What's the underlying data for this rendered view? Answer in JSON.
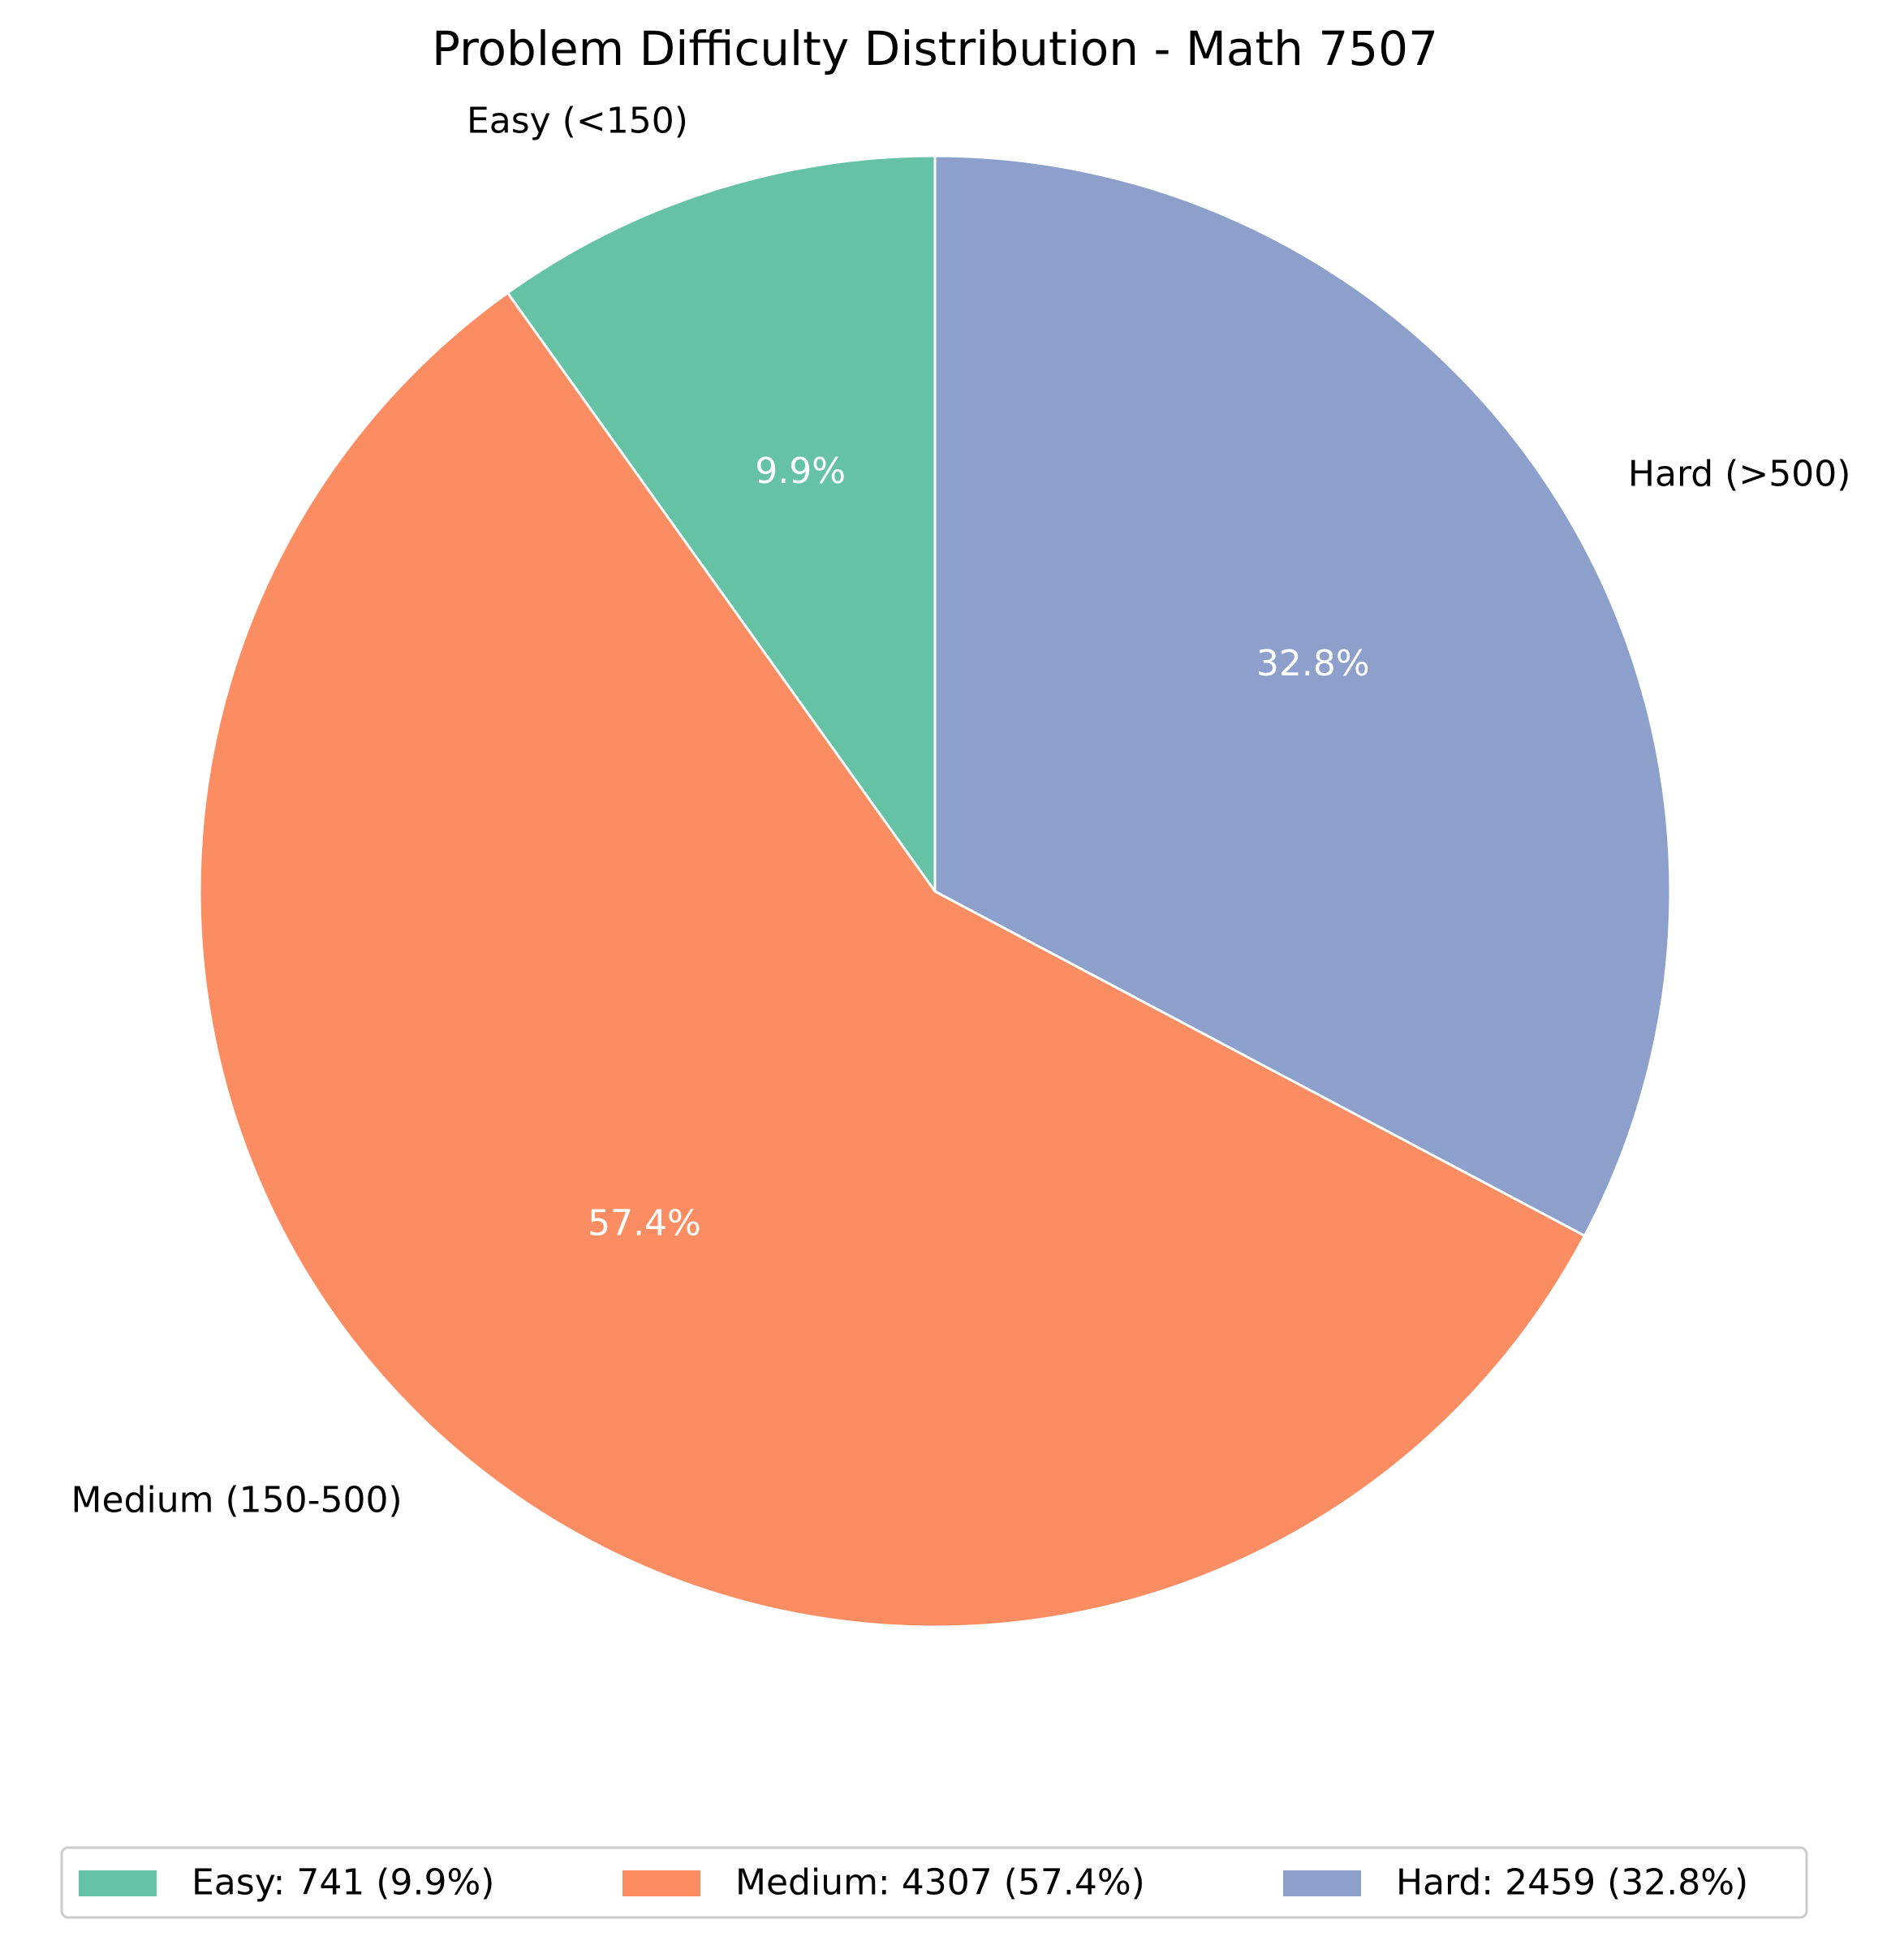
{
  "chart_data": {
    "type": "pie",
    "title": "Problem Difficulty Distribution - Math 7507",
    "start_angle_deg": 90,
    "direction": "counterclockwise",
    "slices": [
      {
        "label": "Easy (<150)",
        "value": 741,
        "percent_label": "9.9%",
        "legend": "Easy: 741 (9.9%)",
        "color": "#66c2a5"
      },
      {
        "label": "Medium (150-500)",
        "value": 4307,
        "percent_label": "57.4%",
        "legend": "Medium: 4307 (57.4%)",
        "color": "#fc8d62"
      },
      {
        "label": "Hard (>500)",
        "value": 2459,
        "percent_label": "32.8%",
        "legend": "Hard: 2459 (32.8%)",
        "color": "#8da0cb"
      }
    ],
    "wedge_edge_color": "#ffffff",
    "legend_position": "bottom-center"
  }
}
